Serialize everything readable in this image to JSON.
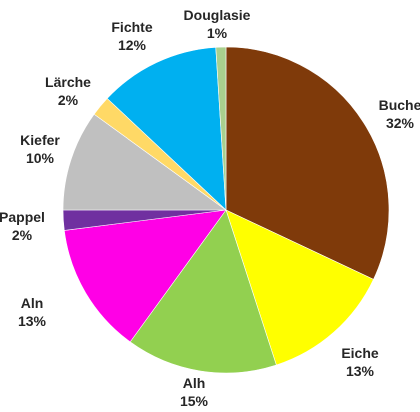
{
  "chart_data": {
    "type": "pie",
    "start": "12 o'clock",
    "direction": "clockwise",
    "slices": [
      {
        "label": "Buche",
        "value": 32,
        "value_label": "32%",
        "color": "#7f3a0a"
      },
      {
        "label": "Eiche",
        "value": 13,
        "value_label": "13%",
        "color": "#ffff00"
      },
      {
        "label": "Alh",
        "value": 15,
        "value_label": "15%",
        "color": "#92d050"
      },
      {
        "label": "Aln",
        "value": 13,
        "value_label": "13%",
        "color": "#ff00e6"
      },
      {
        "label": "Pappel",
        "value": 2,
        "value_label": "2%",
        "color": "#7030a0"
      },
      {
        "label": "Kiefer",
        "value": 10,
        "value_label": "10%",
        "color": "#c0c0c0"
      },
      {
        "label": "Lärche",
        "value": 2,
        "value_label": "2%",
        "color": "#ffd966"
      },
      {
        "label": "Fichte",
        "value": 12,
        "value_label": "12%",
        "color": "#00b0f0"
      },
      {
        "label": "Douglasie",
        "value": 1,
        "value_label": "1%",
        "color": "#a9d08e"
      }
    ]
  }
}
